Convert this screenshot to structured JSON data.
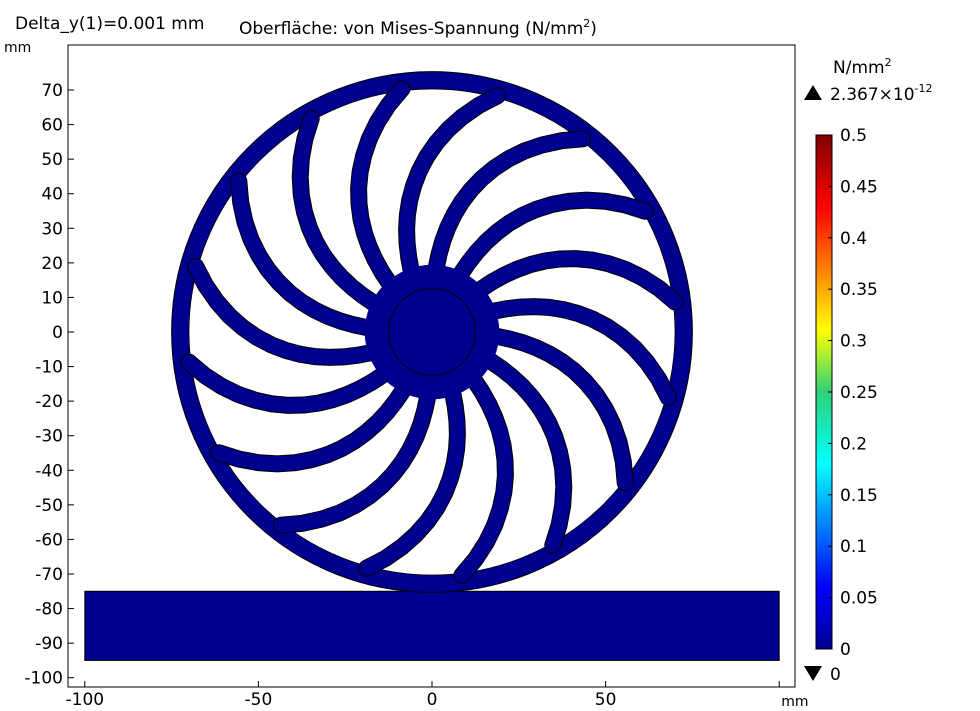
{
  "parameter_label": "Delta_y(1)=0.001 mm",
  "title_main": "Oberfläche: von Mises-Spannung (N/mm",
  "title_sup": "2",
  "title_close": ")",
  "colors": {
    "body_fill": "#00008f",
    "outline": "#000000",
    "frame": "#000000"
  },
  "colorbar": {
    "unit_main": "N/mm",
    "unit_sup": "2",
    "max_marker_mantissa": "2.367×10",
    "max_marker_exponent": "-12",
    "min_marker": "0",
    "ticks": [
      "0.5",
      "0.45",
      "0.4",
      "0.35",
      "0.3",
      "0.25",
      "0.2",
      "0.15",
      "0.1",
      "0.05",
      "0"
    ],
    "tick_values": [
      0.5,
      0.45,
      0.4,
      0.35,
      0.3,
      0.25,
      0.2,
      0.15,
      0.1,
      0.05,
      0
    ],
    "range": [
      0,
      0.5
    ],
    "colormap": "rainbow"
  },
  "chart_data": {
    "type": "heatmap",
    "title": "Oberfläche: von Mises-Spannung (N/mm²)",
    "x_unit": "mm",
    "y_unit": "mm",
    "xlim": [
      -103,
      105
    ],
    "ylim": [
      -101,
      83
    ],
    "x_ticks": [
      -100,
      -50,
      0,
      50,
      100
    ],
    "x_tick_labels": [
      "-100",
      "-50",
      "0",
      "50",
      "mm"
    ],
    "y_ticks": [
      70,
      60,
      50,
      40,
      30,
      20,
      10,
      0,
      -10,
      -20,
      -30,
      -40,
      -50,
      -60,
      -70,
      -80,
      -90,
      -100
    ],
    "y_tick_labels": [
      "70",
      "60",
      "50",
      "40",
      "30",
      "20",
      "10",
      "0",
      "-10",
      "-20",
      "-30",
      "-40",
      "-50",
      "-60",
      "-70",
      "-80",
      "-90",
      "-100"
    ],
    "grid": false,
    "wheel": {
      "center": [
        0,
        0
      ],
      "outer_radius": 75,
      "rim_inner_radius": 70,
      "hub_radius": 12.5,
      "spoke_count": 16,
      "stress_value": 0
    },
    "ground_block": {
      "x_range": [
        -100,
        100
      ],
      "y_range": [
        -95,
        -75
      ],
      "stress_value": 0
    },
    "color_range": [
      0,
      0.5
    ],
    "max_value": "2.367×10^-12",
    "min_value": 0
  }
}
